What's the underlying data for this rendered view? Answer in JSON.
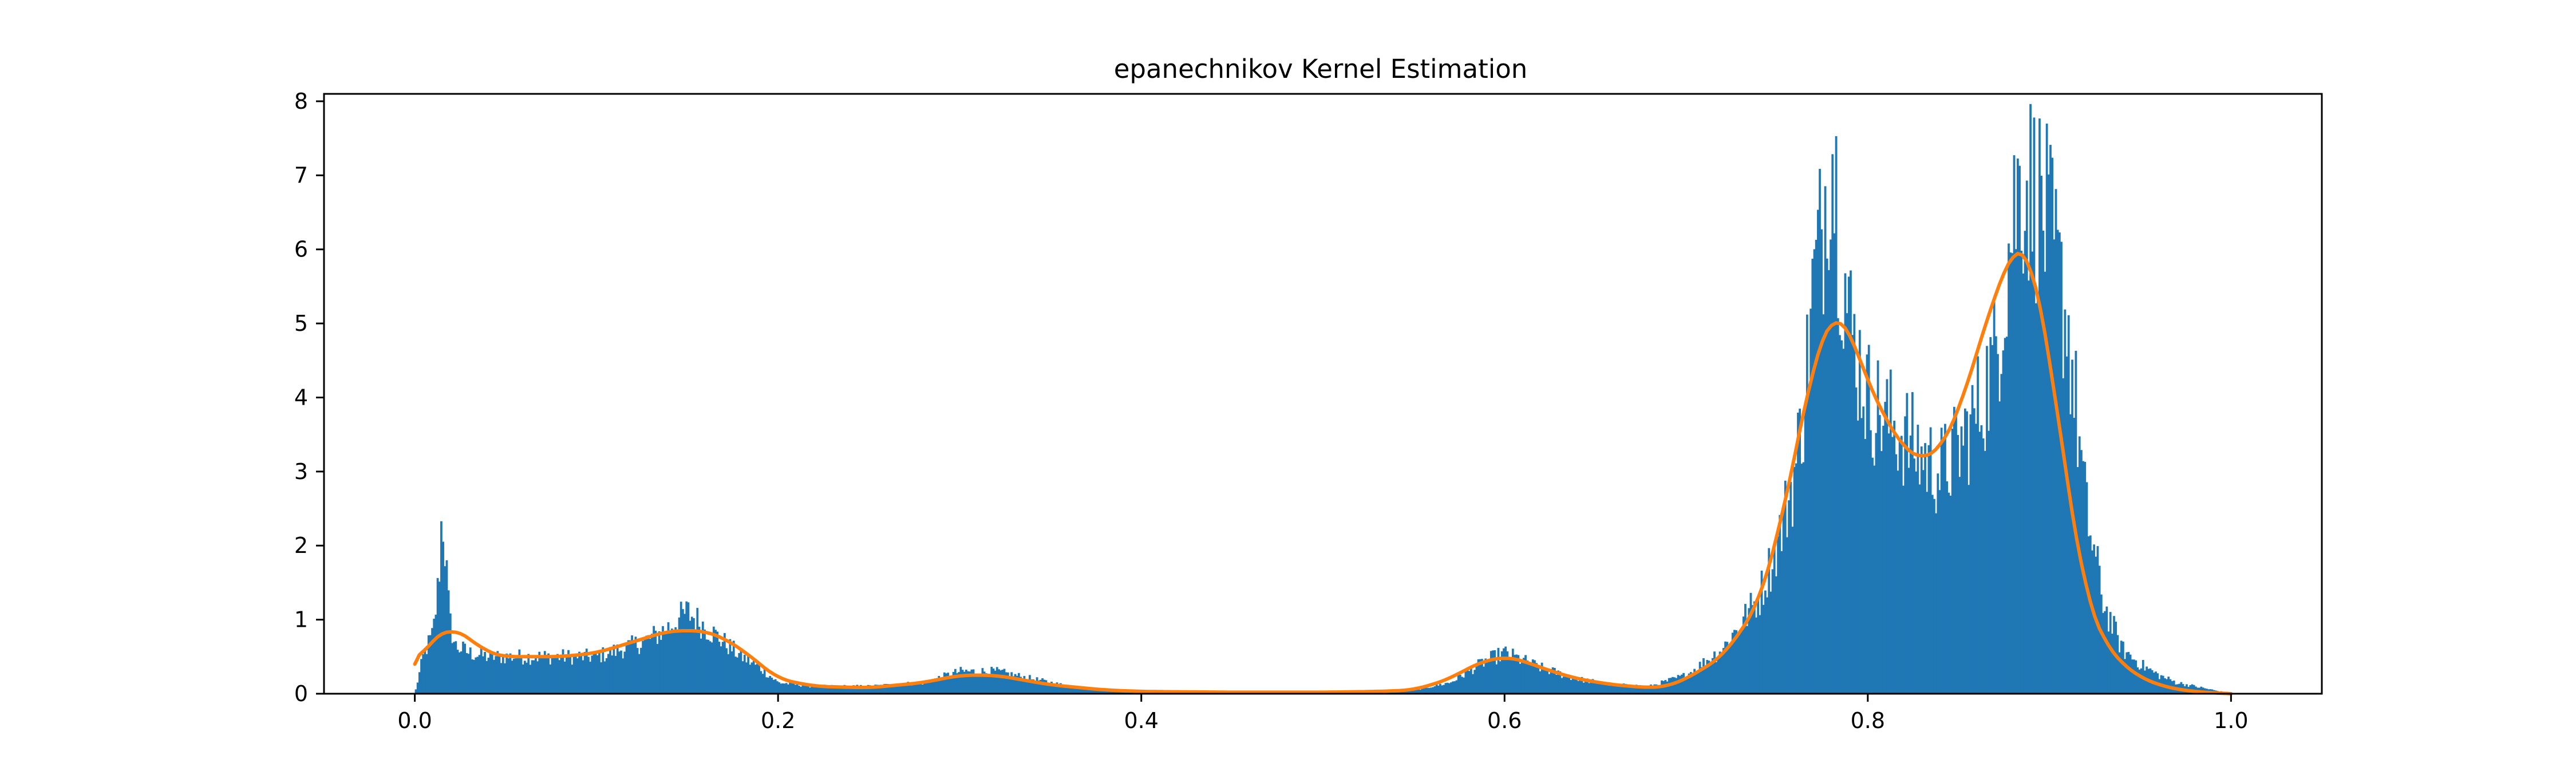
{
  "chart_data": {
    "type": "bar",
    "title": "epanechnikov Kernel Estimation",
    "xlabel": "",
    "ylabel": "",
    "xlim": [
      -0.05,
      1.05
    ],
    "ylim": [
      0,
      8.1
    ],
    "x_ticks": [
      0.0,
      0.2,
      0.4,
      0.6,
      0.8,
      1.0
    ],
    "x_tick_labels": [
      "0.0",
      "0.2",
      "0.4",
      "0.6",
      "0.8",
      "1.0"
    ],
    "y_ticks": [
      0,
      1,
      2,
      3,
      4,
      5,
      6,
      7,
      8
    ],
    "y_tick_labels": [
      "0",
      "1",
      "2",
      "3",
      "4",
      "5",
      "6",
      "7",
      "8"
    ],
    "grid": false,
    "legend": "none",
    "colors": {
      "histogram": "#1f77b4",
      "kde": "#ff7f0e",
      "axes": "#000000"
    },
    "series": [
      {
        "kind": "histogram",
        "bin_range": [
          0.0,
          1.0
        ],
        "bin_count": 1000,
        "density_profile": {
          "x": [
            0.0,
            0.005,
            0.01,
            0.013,
            0.015,
            0.017,
            0.019,
            0.022,
            0.026,
            0.03,
            0.04,
            0.05,
            0.06,
            0.08,
            0.1,
            0.12,
            0.13,
            0.14,
            0.15,
            0.16,
            0.17,
            0.18,
            0.19,
            0.2,
            0.22,
            0.25,
            0.28,
            0.3,
            0.32,
            0.34,
            0.36,
            0.38,
            0.4,
            0.45,
            0.5,
            0.55,
            0.57,
            0.58,
            0.59,
            0.6,
            0.61,
            0.62,
            0.64,
            0.66,
            0.68,
            0.7,
            0.72,
            0.74,
            0.75,
            0.76,
            0.765,
            0.77,
            0.775,
            0.778,
            0.78,
            0.782,
            0.785,
            0.79,
            0.795,
            0.8,
            0.81,
            0.82,
            0.83,
            0.84,
            0.85,
            0.86,
            0.87,
            0.875,
            0.88,
            0.885,
            0.89,
            0.895,
            0.9,
            0.91,
            0.92,
            0.93,
            0.94,
            0.95,
            0.96,
            0.97,
            0.98,
            0.99,
            1.0
          ],
          "y": [
            0.0,
            0.55,
            0.8,
            1.5,
            2.5,
            1.8,
            1.0,
            0.65,
            0.6,
            0.55,
            0.5,
            0.5,
            0.5,
            0.5,
            0.5,
            0.65,
            0.75,
            0.9,
            1.1,
            0.9,
            0.7,
            0.5,
            0.35,
            0.15,
            0.1,
            0.1,
            0.15,
            0.3,
            0.3,
            0.2,
            0.1,
            0.05,
            0.03,
            0.03,
            0.03,
            0.05,
            0.15,
            0.3,
            0.45,
            0.55,
            0.45,
            0.35,
            0.2,
            0.12,
            0.1,
            0.25,
            0.6,
            1.3,
            2.0,
            3.0,
            4.0,
            5.5,
            6.3,
            7.2,
            7.5,
            7.0,
            6.0,
            5.0,
            4.5,
            4.0,
            3.7,
            3.5,
            3.2,
            3.0,
            3.3,
            3.8,
            4.5,
            5.5,
            6.5,
            7.0,
            6.8,
            6.6,
            6.2,
            5.0,
            2.5,
            1.2,
            0.6,
            0.4,
            0.25,
            0.15,
            0.1,
            0.05,
            0.0
          ]
        }
      },
      {
        "kind": "line",
        "x": [
          0.0,
          0.01,
          0.02,
          0.03,
          0.04,
          0.05,
          0.06,
          0.08,
          0.1,
          0.12,
          0.14,
          0.16,
          0.17,
          0.18,
          0.19,
          0.2,
          0.22,
          0.25,
          0.28,
          0.3,
          0.32,
          0.35,
          0.38,
          0.4,
          0.45,
          0.5,
          0.53,
          0.55,
          0.57,
          0.58,
          0.59,
          0.6,
          0.61,
          0.62,
          0.64,
          0.66,
          0.68,
          0.69,
          0.7,
          0.72,
          0.74,
          0.75,
          0.76,
          0.77,
          0.78,
          0.785,
          0.79,
          0.8,
          0.81,
          0.82,
          0.83,
          0.84,
          0.85,
          0.86,
          0.87,
          0.88,
          0.885,
          0.89,
          0.9,
          0.91,
          0.92,
          0.93,
          0.94,
          0.95,
          0.96,
          0.97,
          0.98,
          0.99,
          1.0
        ],
        "y": [
          0.4,
          0.75,
          0.9,
          0.75,
          0.55,
          0.5,
          0.5,
          0.5,
          0.55,
          0.7,
          0.85,
          0.85,
          0.75,
          0.6,
          0.4,
          0.2,
          0.1,
          0.08,
          0.15,
          0.25,
          0.25,
          0.12,
          0.05,
          0.03,
          0.02,
          0.02,
          0.03,
          0.05,
          0.2,
          0.35,
          0.45,
          0.5,
          0.45,
          0.35,
          0.2,
          0.12,
          0.08,
          0.1,
          0.2,
          0.5,
          1.2,
          2.1,
          3.2,
          4.5,
          5.1,
          5.15,
          4.9,
          4.2,
          3.7,
          3.3,
          3.15,
          3.3,
          3.8,
          4.6,
          5.4,
          6.0,
          6.1,
          5.9,
          4.6,
          2.8,
          1.3,
          0.7,
          0.4,
          0.22,
          0.12,
          0.06,
          0.03,
          0.01,
          0.0
        ]
      }
    ]
  }
}
